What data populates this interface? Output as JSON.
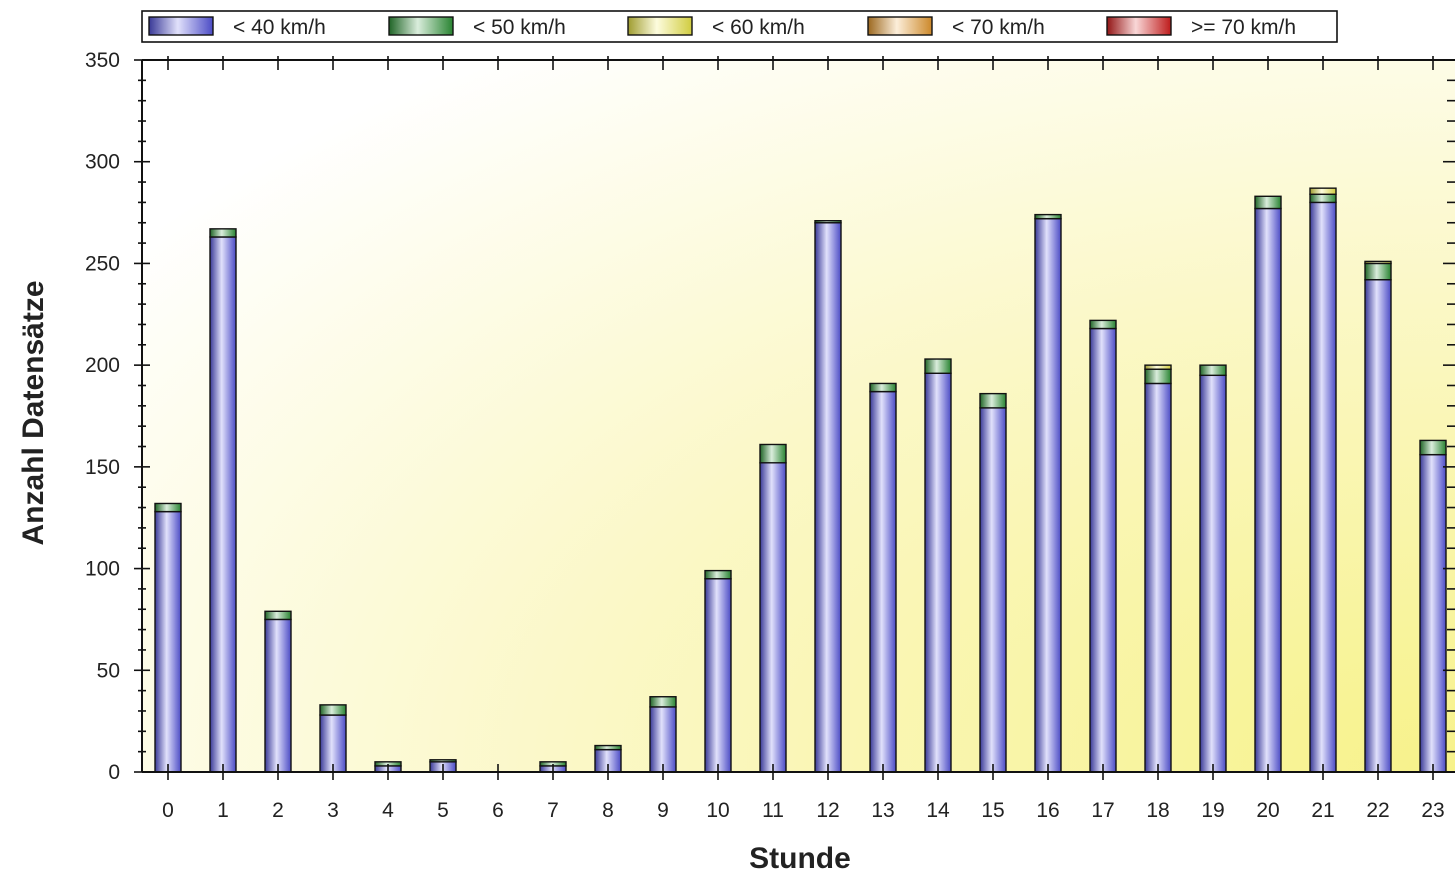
{
  "chart_data": {
    "type": "bar",
    "stacked": true,
    "xlabel": "Stunde",
    "ylabel": "Anzahl Datensätze",
    "ylim": [
      0,
      350
    ],
    "yticks": [
      0,
      50,
      100,
      150,
      200,
      250,
      300,
      350
    ],
    "legend_position": "top",
    "grid": false,
    "categories": [
      "0",
      "1",
      "2",
      "3",
      "4",
      "5",
      "6",
      "7",
      "8",
      "9",
      "10",
      "11",
      "12",
      "13",
      "14",
      "15",
      "16",
      "17",
      "18",
      "19",
      "20",
      "21",
      "22",
      "23"
    ],
    "series": [
      {
        "name": "< 40 km/h",
        "color": "#5858e8",
        "values": [
          128,
          263,
          75,
          28,
          3,
          5,
          0,
          3,
          11,
          32,
          95,
          152,
          270,
          187,
          196,
          179,
          272,
          218,
          191,
          195,
          277,
          280,
          242,
          156
        ]
      },
      {
        "name": "< 50 km/h",
        "color": "#2f9a3a",
        "values": [
          4,
          4,
          4,
          5,
          2,
          1,
          0,
          2,
          2,
          5,
          4,
          9,
          1,
          4,
          7,
          7,
          2,
          4,
          7,
          5,
          6,
          4,
          8,
          7
        ]
      },
      {
        "name": "< 60 km/h",
        "color": "#f5f04a",
        "values": [
          0,
          0,
          0,
          0,
          0,
          0,
          0,
          0,
          0,
          0,
          0,
          0,
          0,
          0,
          0,
          0,
          0,
          0,
          2,
          0,
          0,
          3,
          1,
          0
        ]
      },
      {
        "name": "< 70 km/h",
        "color": "#f0a030",
        "values": [
          0,
          0,
          0,
          0,
          0,
          0,
          0,
          0,
          0,
          0,
          0,
          0,
          0,
          0,
          0,
          0,
          0,
          0,
          0,
          0,
          0,
          0,
          0,
          0
        ]
      },
      {
        "name": ">= 70 km/h",
        "color": "#e02020",
        "values": [
          0,
          0,
          0,
          0,
          0,
          0,
          0,
          0,
          0,
          0,
          0,
          0,
          0,
          0,
          0,
          0,
          0,
          0,
          0,
          0,
          0,
          0,
          0,
          0
        ]
      }
    ]
  }
}
